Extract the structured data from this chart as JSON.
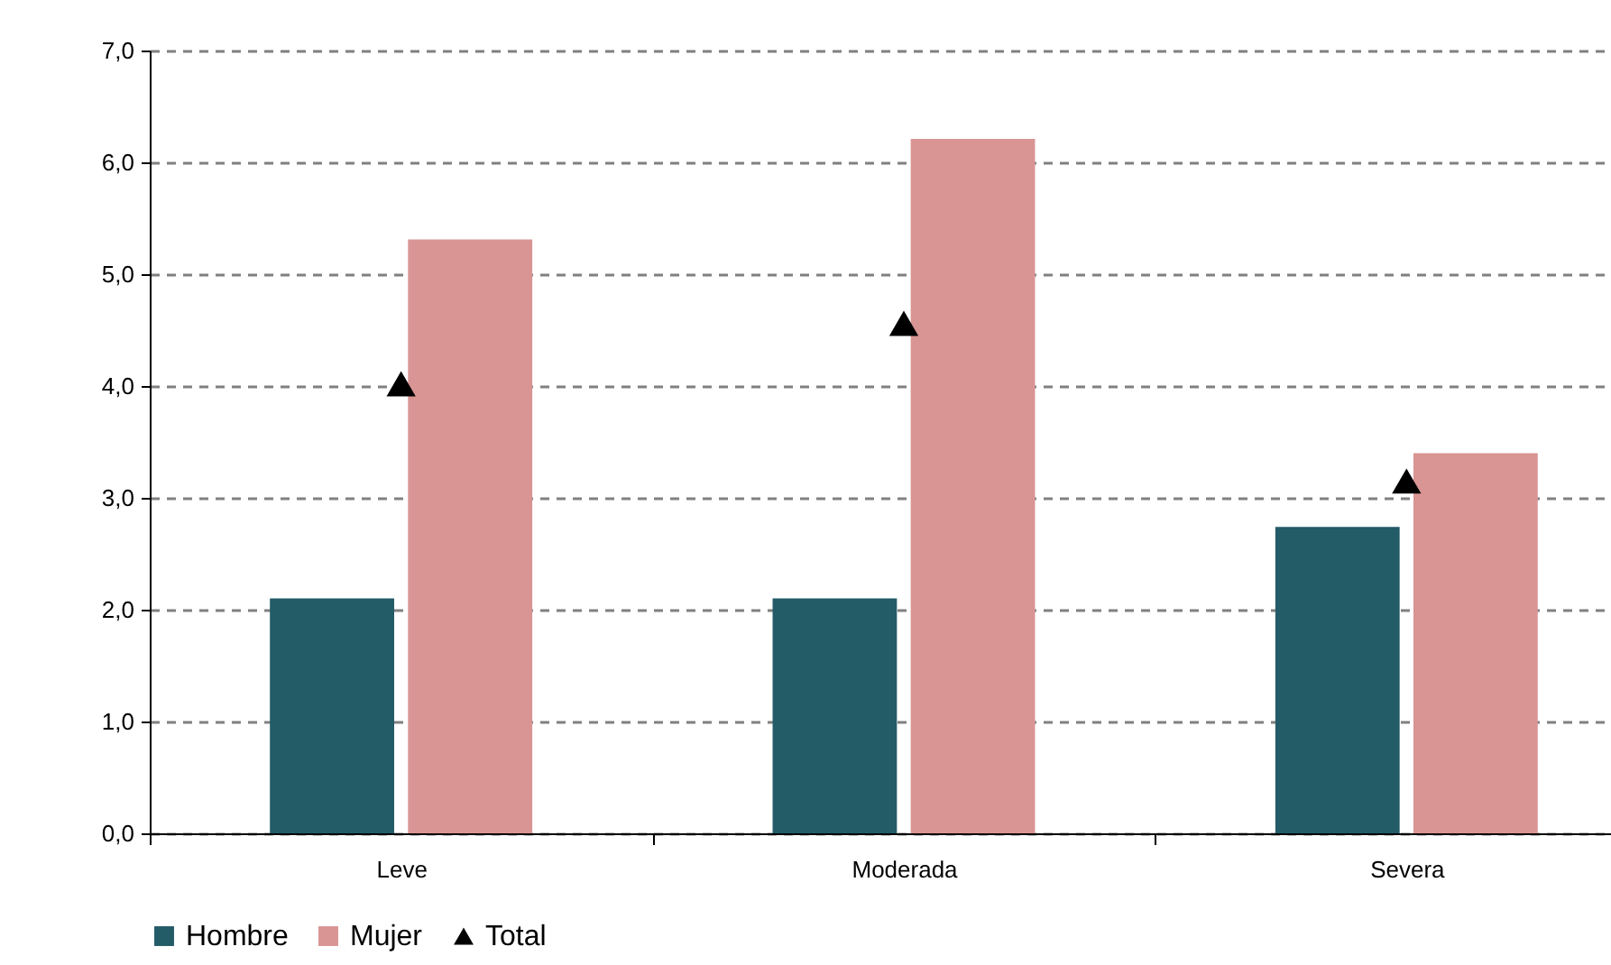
{
  "chart_data": {
    "type": "bar",
    "categories": [
      "Leve",
      "Moderada",
      "Severa"
    ],
    "series": [
      {
        "name": "Hombre",
        "color": "#235b67",
        "values": [
          2.1,
          2.1,
          2.74
        ]
      },
      {
        "name": "Mujer",
        "color": "#d99594",
        "values": [
          5.31,
          6.21,
          3.4
        ]
      },
      {
        "name": "Total",
        "type": "scatter",
        "marker": "triangle",
        "color": "#000000",
        "values": [
          4.02,
          4.56,
          3.15
        ]
      }
    ],
    "ylim": [
      0,
      7
    ],
    "yticks": [
      {
        "value": 0,
        "label": "0,0"
      },
      {
        "value": 1,
        "label": "1,0"
      },
      {
        "value": 2,
        "label": "2,0"
      },
      {
        "value": 3,
        "label": "3,0"
      },
      {
        "value": 4,
        "label": "4,0"
      },
      {
        "value": 5,
        "label": "5,0"
      },
      {
        "value": 6,
        "label": "6,0"
      },
      {
        "value": 7,
        "label": "7,0"
      }
    ],
    "grid": "y",
    "legend": "bottom"
  }
}
